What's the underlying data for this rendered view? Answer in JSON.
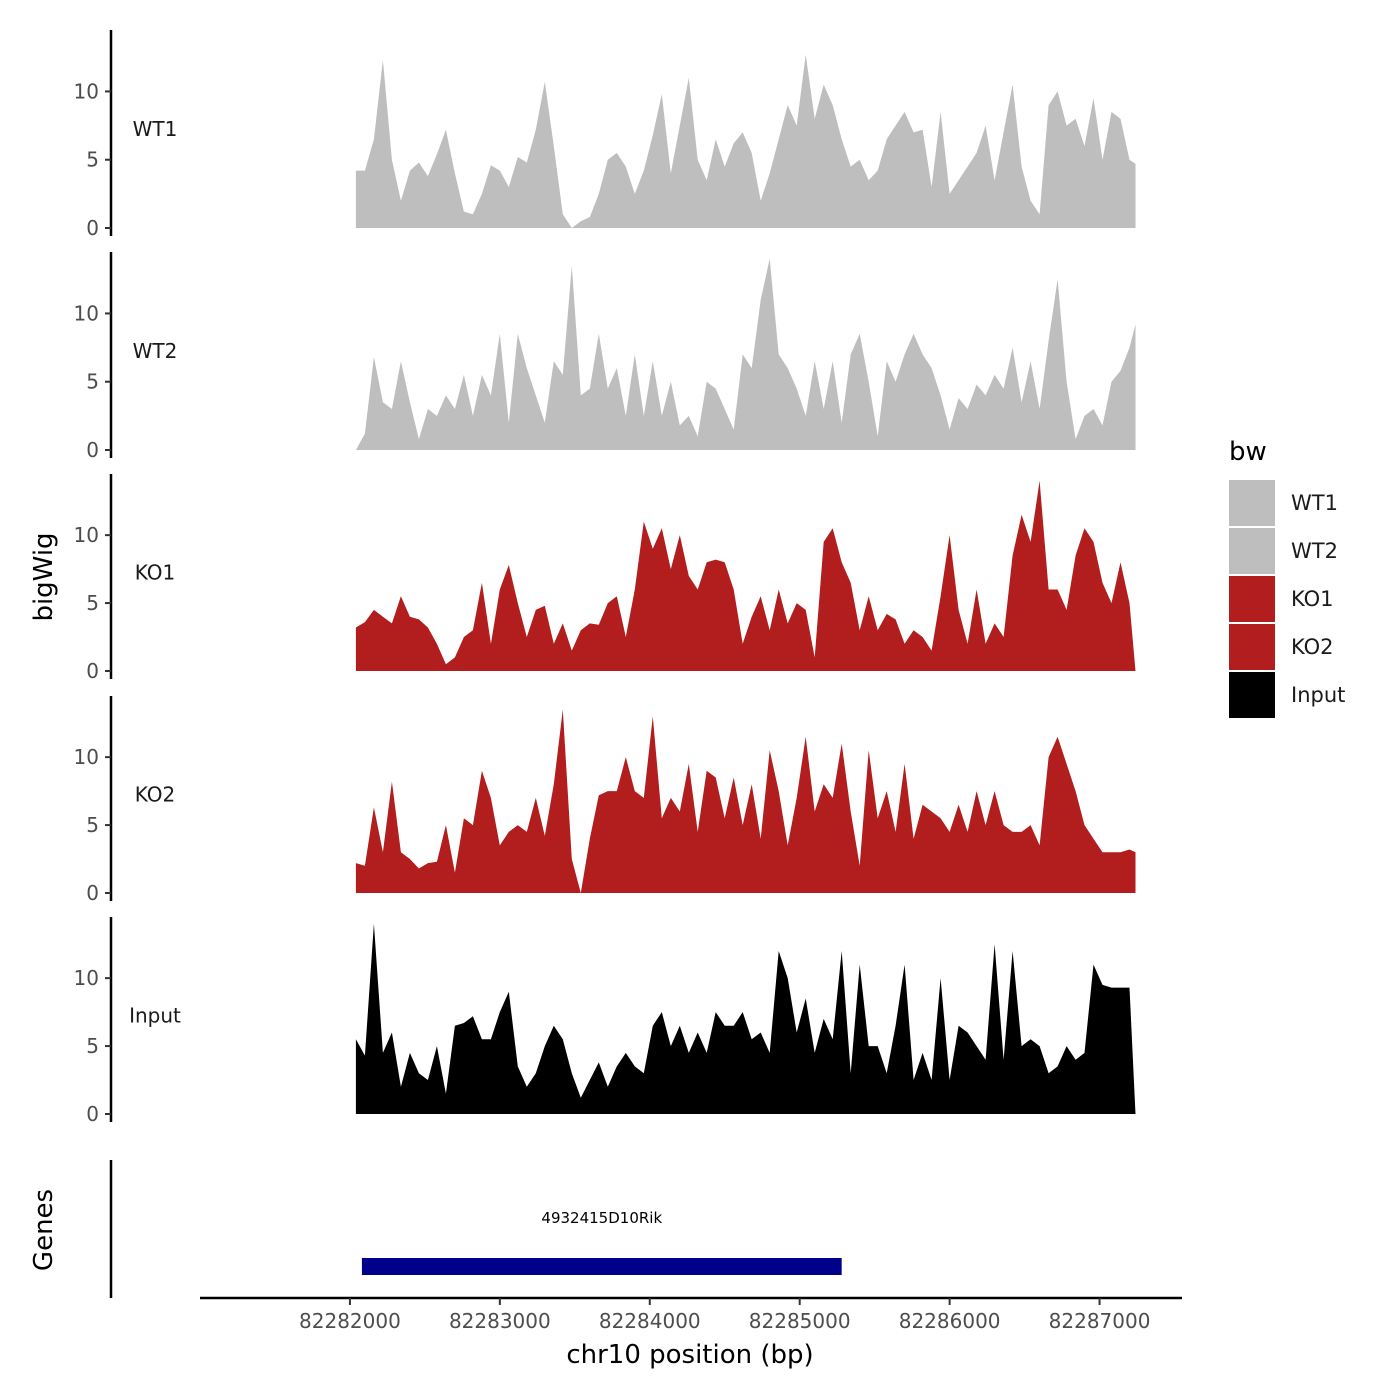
{
  "chart_data": {
    "type": "area",
    "xlabel": "chr10 position (bp)",
    "ylabel": "bigWig",
    "genes_label": "Genes",
    "x_ticks": [
      "82282000",
      "82283000",
      "82284000",
      "82285000",
      "82286000",
      "82287000"
    ],
    "x_tick_values": [
      82282000,
      82283000,
      82284000,
      82285000,
      82286000,
      82287000
    ],
    "xlim": [
      82281000,
      82287550
    ],
    "y_ticks": [
      "0",
      "5",
      "10"
    ],
    "y_tick_values": [
      0,
      5,
      10
    ],
    "ylim": [
      0,
      14.5
    ],
    "legend": {
      "title": "bw",
      "entries": [
        {
          "name": "WT1",
          "color": "#bebebe"
        },
        {
          "name": "WT2",
          "color": "#bebebe"
        },
        {
          "name": "KO1",
          "color": "#b21e1e"
        },
        {
          "name": "KO2",
          "color": "#b21e1e"
        },
        {
          "name": "Input",
          "color": "#000000"
        }
      ]
    },
    "series": [
      {
        "name": "WT1",
        "color": "#bebebe",
        "x": [
          82282040,
          82282100,
          82282160,
          82282220,
          82282280,
          82282340,
          82282400,
          82282460,
          82282520,
          82282580,
          82282640,
          82282700,
          82282760,
          82282820,
          82282880,
          82282940,
          82283000,
          82283060,
          82283120,
          82283180,
          82283240,
          82283300,
          82283360,
          82283420,
          82283480,
          82283540,
          82283600,
          82283660,
          82283720,
          82283780,
          82283840,
          82283900,
          82283960,
          82284020,
          82284080,
          82284140,
          82284200,
          82284260,
          82284320,
          82284380,
          82284440,
          82284500,
          82284560,
          82284620,
          82284680,
          82284740,
          82284800,
          82284860,
          82284920,
          82284980,
          82285040,
          82285100,
          82285160,
          82285220,
          82285280,
          82285340,
          82285400,
          82285460,
          82285520,
          82285580,
          82285640,
          82285700,
          82285760,
          82285820,
          82285880,
          82285940,
          82286000,
          82286060,
          82286120,
          82286180,
          82286240,
          82286300,
          82286360,
          82286420,
          82286480,
          82286540,
          82286600,
          82286660,
          82286720,
          82286780,
          82286840,
          82286900,
          82286960,
          82287020,
          82287080,
          82287140,
          82287200,
          82287240
        ],
        "values": [
          4.2,
          4.2,
          6.5,
          12.3,
          5.0,
          2.0,
          4.2,
          4.8,
          3.8,
          5.4,
          7.2,
          4.0,
          1.2,
          1.0,
          2.5,
          4.6,
          4.2,
          3.0,
          5.2,
          4.8,
          7.2,
          10.7,
          6.0,
          1.0,
          0.0,
          0.5,
          0.8,
          2.5,
          5.0,
          5.5,
          4.5,
          2.5,
          4.2,
          6.8,
          9.8,
          4.0,
          7.5,
          11.0,
          5.0,
          3.5,
          6.5,
          4.5,
          6.2,
          7.0,
          5.5,
          2.0,
          4.0,
          6.5,
          9.0,
          7.5,
          12.7,
          8.0,
          10.5,
          9.0,
          6.5,
          4.5,
          5.0,
          3.5,
          4.2,
          6.5,
          7.5,
          8.5,
          7.0,
          7.2,
          3.0,
          8.5,
          2.5,
          3.5,
          4.5,
          5.5,
          7.5,
          3.5,
          7.0,
          10.5,
          4.5,
          2.0,
          1.0,
          9.0,
          10.0,
          7.5,
          8.0,
          6.0,
          9.5,
          5.0,
          8.5,
          8.0,
          5.0,
          4.7
        ]
      },
      {
        "name": "WT2",
        "color": "#bebebe",
        "x": [
          82282040,
          82282100,
          82282160,
          82282220,
          82282280,
          82282340,
          82282400,
          82282460,
          82282520,
          82282580,
          82282640,
          82282700,
          82282760,
          82282820,
          82282880,
          82282940,
          82283000,
          82283060,
          82283120,
          82283180,
          82283240,
          82283300,
          82283360,
          82283420,
          82283480,
          82283540,
          82283600,
          82283660,
          82283720,
          82283780,
          82283840,
          82283900,
          82283960,
          82284020,
          82284080,
          82284140,
          82284200,
          82284260,
          82284320,
          82284380,
          82284440,
          82284500,
          82284560,
          82284620,
          82284680,
          82284740,
          82284800,
          82284860,
          82284920,
          82284980,
          82285040,
          82285100,
          82285160,
          82285220,
          82285280,
          82285340,
          82285400,
          82285460,
          82285520,
          82285580,
          82285640,
          82285700,
          82285760,
          82285820,
          82285880,
          82285940,
          82286000,
          82286060,
          82286120,
          82286180,
          82286240,
          82286300,
          82286360,
          82286420,
          82286480,
          82286540,
          82286600,
          82286660,
          82286720,
          82286780,
          82286840,
          82286900,
          82286960,
          82287020,
          82287080,
          82287140,
          82287200,
          82287240
        ],
        "values": [
          0.0,
          1.2,
          6.8,
          3.5,
          3.0,
          6.5,
          3.5,
          0.8,
          3.0,
          2.5,
          4.0,
          3.0,
          5.5,
          2.5,
          5.5,
          4.0,
          8.5,
          2.0,
          8.5,
          6.0,
          4.0,
          2.0,
          6.5,
          5.5,
          13.5,
          4.0,
          4.5,
          8.5,
          4.5,
          6.0,
          2.5,
          7.0,
          2.5,
          6.5,
          2.5,
          5.0,
          1.8,
          2.5,
          1.0,
          5.0,
          4.5,
          3.0,
          1.5,
          7.0,
          6.0,
          11.0,
          14.0,
          7.0,
          6.0,
          4.5,
          2.5,
          6.5,
          3.0,
          6.5,
          2.0,
          7.0,
          8.5,
          5.0,
          1.0,
          6.5,
          5.0,
          7.0,
          8.5,
          7.0,
          6.0,
          4.0,
          1.5,
          3.8,
          3.0,
          4.8,
          4.0,
          5.5,
          4.5,
          7.5,
          3.5,
          6.5,
          3.0,
          8.0,
          12.5,
          5.0,
          0.8,
          2.5,
          3.0,
          1.8,
          5.0,
          5.8,
          7.5,
          9.2
        ]
      },
      {
        "name": "KO1",
        "color": "#b21e1e",
        "x": [
          82282040,
          82282100,
          82282160,
          82282220,
          82282280,
          82282340,
          82282400,
          82282460,
          82282520,
          82282580,
          82282640,
          82282700,
          82282760,
          82282820,
          82282880,
          82282940,
          82283000,
          82283060,
          82283120,
          82283180,
          82283240,
          82283300,
          82283360,
          82283420,
          82283480,
          82283540,
          82283600,
          82283660,
          82283720,
          82283780,
          82283840,
          82283900,
          82283960,
          82284020,
          82284080,
          82284140,
          82284200,
          82284260,
          82284320,
          82284380,
          82284440,
          82284500,
          82284560,
          82284620,
          82284680,
          82284740,
          82284800,
          82284860,
          82284920,
          82284980,
          82285040,
          82285100,
          82285160,
          82285220,
          82285280,
          82285340,
          82285400,
          82285460,
          82285520,
          82285580,
          82285640,
          82285700,
          82285760,
          82285820,
          82285880,
          82285940,
          82286000,
          82286060,
          82286120,
          82286180,
          82286240,
          82286300,
          82286360,
          82286420,
          82286480,
          82286540,
          82286600,
          82286660,
          82286720,
          82286780,
          82286840,
          82286900,
          82286960,
          82287020,
          82287080,
          82287140,
          82287200,
          82287240
        ],
        "values": [
          3.2,
          3.6,
          4.5,
          4.0,
          3.5,
          5.5,
          4.0,
          3.8,
          3.2,
          2.0,
          0.5,
          1.0,
          2.5,
          3.0,
          6.5,
          2.0,
          6.0,
          7.8,
          5.0,
          2.5,
          4.5,
          4.8,
          2.0,
          3.5,
          1.5,
          3.0,
          3.5,
          3.4,
          5.0,
          5.5,
          2.5,
          6.0,
          11.0,
          9.0,
          10.5,
          7.5,
          10.0,
          7.0,
          6.0,
          8.0,
          8.2,
          8.0,
          6.0,
          2.0,
          4.0,
          5.5,
          3.0,
          6.0,
          3.5,
          5.0,
          4.5,
          1.0,
          9.5,
          10.5,
          8.0,
          6.5,
          3.0,
          5.5,
          3.0,
          4.2,
          3.8,
          2.0,
          3.0,
          2.5,
          1.5,
          5.5,
          10.0,
          4.5,
          2.0,
          6.0,
          2.0,
          3.5,
          2.5,
          8.5,
          11.5,
          9.5,
          14.0,
          6.0,
          6.0,
          4.5,
          8.5,
          10.5,
          9.5,
          6.5,
          5.0,
          8.0,
          5.0,
          0.0
        ]
      },
      {
        "name": "KO2",
        "color": "#b21e1e",
        "x": [
          82282040,
          82282100,
          82282160,
          82282220,
          82282280,
          82282340,
          82282400,
          82282460,
          82282520,
          82282580,
          82282640,
          82282700,
          82282760,
          82282820,
          82282880,
          82282940,
          82283000,
          82283060,
          82283120,
          82283180,
          82283240,
          82283300,
          82283360,
          82283420,
          82283480,
          82283540,
          82283600,
          82283660,
          82283720,
          82283780,
          82283840,
          82283900,
          82283960,
          82284020,
          82284080,
          82284140,
          82284200,
          82284260,
          82284320,
          82284380,
          82284440,
          82284500,
          82284560,
          82284620,
          82284680,
          82284740,
          82284800,
          82284860,
          82284920,
          82284980,
          82285040,
          82285100,
          82285160,
          82285220,
          82285280,
          82285340,
          82285400,
          82285460,
          82285520,
          82285580,
          82285640,
          82285700,
          82285760,
          82285820,
          82285880,
          82285940,
          82286000,
          82286060,
          82286120,
          82286180,
          82286240,
          82286300,
          82286360,
          82286420,
          82286480,
          82286540,
          82286600,
          82286660,
          82286720,
          82286780,
          82286840,
          82286900,
          82286960,
          82287020,
          82287080,
          82287140,
          82287200,
          82287240
        ],
        "values": [
          2.2,
          2.0,
          6.3,
          3.0,
          8.2,
          3.0,
          2.5,
          1.8,
          2.2,
          2.3,
          5.0,
          1.5,
          5.5,
          5.0,
          9.0,
          7.0,
          3.5,
          4.5,
          5.0,
          4.5,
          7.0,
          4.2,
          8.0,
          13.5,
          2.5,
          0.0,
          4.0,
          7.2,
          7.5,
          7.5,
          10.0,
          7.5,
          7.0,
          13.0,
          5.5,
          7.0,
          6.0,
          9.5,
          4.5,
          9.0,
          8.5,
          5.5,
          8.5,
          5.0,
          8.0,
          4.0,
          10.5,
          7.5,
          3.5,
          7.0,
          11.5,
          6.0,
          8.0,
          7.0,
          11.0,
          6.0,
          2.0,
          10.5,
          5.5,
          7.5,
          4.5,
          9.5,
          4.0,
          6.5,
          6.0,
          5.5,
          4.5,
          6.5,
          4.5,
          7.5,
          5.0,
          7.5,
          5.0,
          4.5,
          4.5,
          5.0,
          3.5,
          10.0,
          11.5,
          9.5,
          7.5,
          5.0,
          4.0,
          3.0,
          3.0,
          3.0,
          3.2,
          3.0
        ]
      },
      {
        "name": "Input",
        "color": "#000000",
        "x": [
          82282040,
          82282100,
          82282160,
          82282220,
          82282280,
          82282340,
          82282400,
          82282460,
          82282520,
          82282580,
          82282640,
          82282700,
          82282760,
          82282820,
          82282880,
          82282940,
          82283000,
          82283060,
          82283120,
          82283180,
          82283240,
          82283300,
          82283360,
          82283420,
          82283480,
          82283540,
          82283600,
          82283660,
          82283720,
          82283780,
          82283840,
          82283900,
          82283960,
          82284020,
          82284080,
          82284140,
          82284200,
          82284260,
          82284320,
          82284380,
          82284440,
          82284500,
          82284560,
          82284620,
          82284680,
          82284740,
          82284800,
          82284860,
          82284920,
          82284980,
          82285040,
          82285100,
          82285160,
          82285220,
          82285280,
          82285340,
          82285400,
          82285460,
          82285520,
          82285580,
          82285640,
          82285700,
          82285760,
          82285820,
          82285880,
          82285940,
          82286000,
          82286060,
          82286120,
          82286180,
          82286240,
          82286300,
          82286360,
          82286420,
          82286480,
          82286540,
          82286600,
          82286660,
          82286720,
          82286780,
          82286840,
          82286900,
          82286960,
          82287020,
          82287080,
          82287140,
          82287200,
          82287240
        ],
        "values": [
          5.5,
          4.3,
          14.0,
          4.5,
          6.0,
          2.0,
          4.5,
          3.0,
          2.5,
          5.0,
          1.5,
          6.5,
          6.7,
          7.2,
          5.5,
          5.5,
          7.5,
          9.0,
          3.5,
          2.0,
          3.0,
          5.0,
          6.5,
          5.5,
          3.0,
          1.2,
          2.5,
          3.8,
          2.0,
          3.5,
          4.5,
          3.5,
          3.0,
          6.5,
          7.5,
          5.0,
          6.5,
          4.5,
          6.0,
          4.5,
          7.5,
          6.5,
          6.5,
          7.5,
          5.5,
          6.0,
          4.5,
          12.0,
          10.0,
          6.0,
          8.5,
          4.5,
          7.0,
          5.5,
          12.0,
          3.0,
          11.0,
          5.0,
          5.0,
          3.0,
          6.5,
          11.0,
          2.5,
          4.5,
          2.5,
          10.0,
          2.5,
          6.5,
          6.0,
          5.0,
          4.0,
          12.5,
          4.0,
          12.0,
          5.0,
          5.5,
          5.0,
          3.0,
          3.5,
          5.0,
          4.0,
          4.5,
          11.0,
          9.5,
          9.3,
          9.3,
          9.3,
          0.0
        ]
      }
    ],
    "genes": [
      {
        "name": "4932415D10Rik",
        "start": 82282080,
        "end": 82285280,
        "color": "#00008b"
      }
    ]
  }
}
